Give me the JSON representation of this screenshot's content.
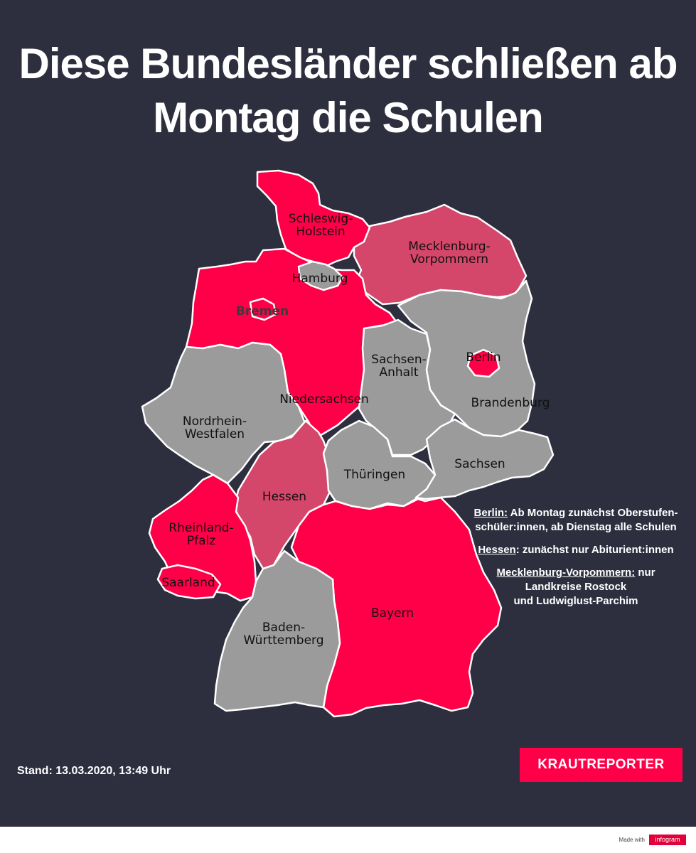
{
  "title": {
    "line1": "Diese Bundesländer schließen ab",
    "line2": "Montag die Schulen"
  },
  "colors": {
    "background": "#2d2f3f",
    "closing": "#ff0048",
    "partial": "#d4466a",
    "open": "#9b9b9b",
    "border": "#ffffff"
  },
  "states": [
    {
      "id": "schleswig-holstein",
      "label_lines": [
        "Schleswig-",
        "Holstein"
      ],
      "status": "closing"
    },
    {
      "id": "hamburg",
      "label_lines": [
        "Hamburg"
      ],
      "status": "open"
    },
    {
      "id": "mecklenburg-vorpommern",
      "label_lines": [
        "Mecklenburg-",
        "Vorpommern"
      ],
      "status": "partial"
    },
    {
      "id": "bremen",
      "label_lines": [
        "Bremen"
      ],
      "status": "closing"
    },
    {
      "id": "niedersachsen",
      "label_lines": [
        "Niedersachsen"
      ],
      "status": "closing"
    },
    {
      "id": "sachsen-anhalt",
      "label_lines": [
        "Sachsen-",
        "Anhalt"
      ],
      "status": "open"
    },
    {
      "id": "berlin",
      "label_lines": [
        "Berlin"
      ],
      "status": "closing"
    },
    {
      "id": "brandenburg",
      "label_lines": [
        "Brandenburg"
      ],
      "status": "open"
    },
    {
      "id": "nordrhein-westfalen",
      "label_lines": [
        "Nordrhein-",
        "Westfalen"
      ],
      "status": "open"
    },
    {
      "id": "hessen",
      "label_lines": [
        "Hessen"
      ],
      "status": "partial"
    },
    {
      "id": "thueringen",
      "label_lines": [
        "Thüringen"
      ],
      "status": "open"
    },
    {
      "id": "sachsen",
      "label_lines": [
        "Sachsen"
      ],
      "status": "open"
    },
    {
      "id": "rheinland-pfalz",
      "label_lines": [
        "Rheinland-",
        "Pfalz"
      ],
      "status": "closing"
    },
    {
      "id": "saarland",
      "label_lines": [
        "Saarland"
      ],
      "status": "closing"
    },
    {
      "id": "bayern",
      "label_lines": [
        "Bayern"
      ],
      "status": "closing"
    },
    {
      "id": "baden-wuerttemberg",
      "label_lines": [
        "Baden-",
        "Württemberg"
      ],
      "status": "open"
    }
  ],
  "notes": [
    {
      "key": "Berlin:",
      "line1": " Ab Montag zunächst Oberstufen-",
      "line2": "schüler:innen, ab Dienstag alle Schulen",
      "line3": ""
    },
    {
      "key": "Hessen",
      "line1": ": zunächst nur Abiturient:innen",
      "line2": "",
      "line3": ""
    },
    {
      "key": "Mecklenburg-Vorpommern:",
      "line1": " nur",
      "line2": "Landkreise Rostock",
      "line3": "und Ludwiglust-Parchim"
    }
  ],
  "stand": "Stand: 13.03.2020, 13:49 Uhr",
  "brand": "KRAUTREPORTER",
  "footer": {
    "made_with": "Made with",
    "logo_text": "infogram"
  }
}
